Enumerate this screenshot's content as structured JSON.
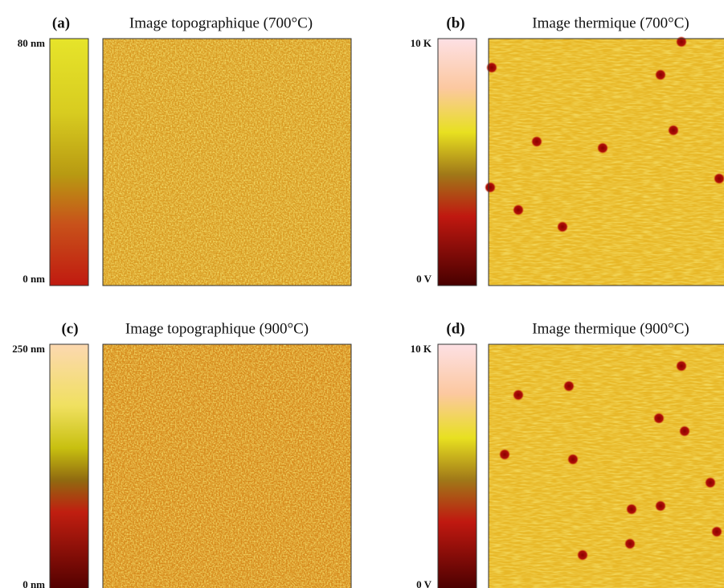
{
  "panels": [
    {
      "label": "(a)",
      "title": "Image topographique (700°C)",
      "scale_max": "80 nm",
      "scale_min": "0 nm"
    },
    {
      "label": "(b)",
      "title": "Image thermique (700°C)",
      "scale_max": "10 K",
      "scale_min": "0 V"
    },
    {
      "label": "(c)",
      "title": "Image topographique (900°C)",
      "scale_max": "250 nm",
      "scale_min": "0 nm"
    },
    {
      "label": "(d)",
      "title": "Image thermique (900°C)",
      "scale_max": "10 K",
      "scale_min": "0 V"
    }
  ]
}
